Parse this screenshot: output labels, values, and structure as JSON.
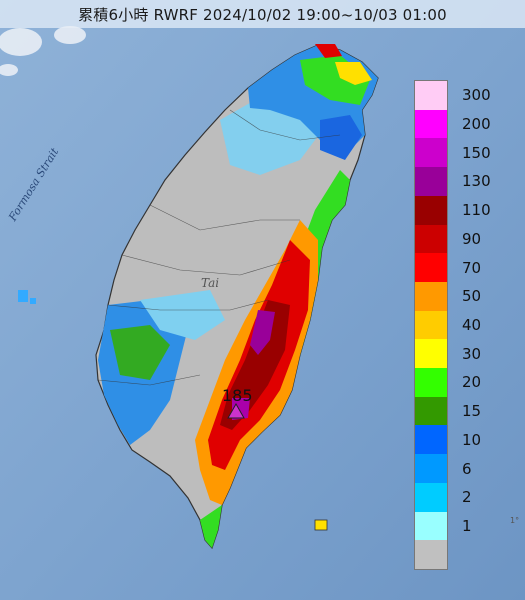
{
  "title": "累積6小時 RWRF 2024/10/02 19:00~10/03 01:00",
  "strait_label": "Formosa Strait",
  "island_label": "Tai",
  "peak_value": "185",
  "edge_label": "1°",
  "legend": {
    "items": [
      {
        "label": "300",
        "color": "#ffccf5"
      },
      {
        "label": "200",
        "color": "#ff00ff"
      },
      {
        "label": "150",
        "color": "#cc00cc"
      },
      {
        "label": "130",
        "color": "#990099"
      },
      {
        "label": "110",
        "color": "#990000"
      },
      {
        "label": "90",
        "color": "#cc0000"
      },
      {
        "label": "70",
        "color": "#ff0000"
      },
      {
        "label": "50",
        "color": "#ff9900"
      },
      {
        "label": "40",
        "color": "#ffcc00"
      },
      {
        "label": "30",
        "color": "#ffff00"
      },
      {
        "label": "20",
        "color": "#33ff00"
      },
      {
        "label": "15",
        "color": "#339900"
      },
      {
        "label": "10",
        "color": "#0066ff"
      },
      {
        "label": "6",
        "color": "#0099ff"
      },
      {
        "label": "2",
        "color": "#00ccff"
      },
      {
        "label": "1",
        "color": "#99ffff"
      },
      {
        "label": "",
        "color": "#c0c0c0"
      }
    ]
  }
}
